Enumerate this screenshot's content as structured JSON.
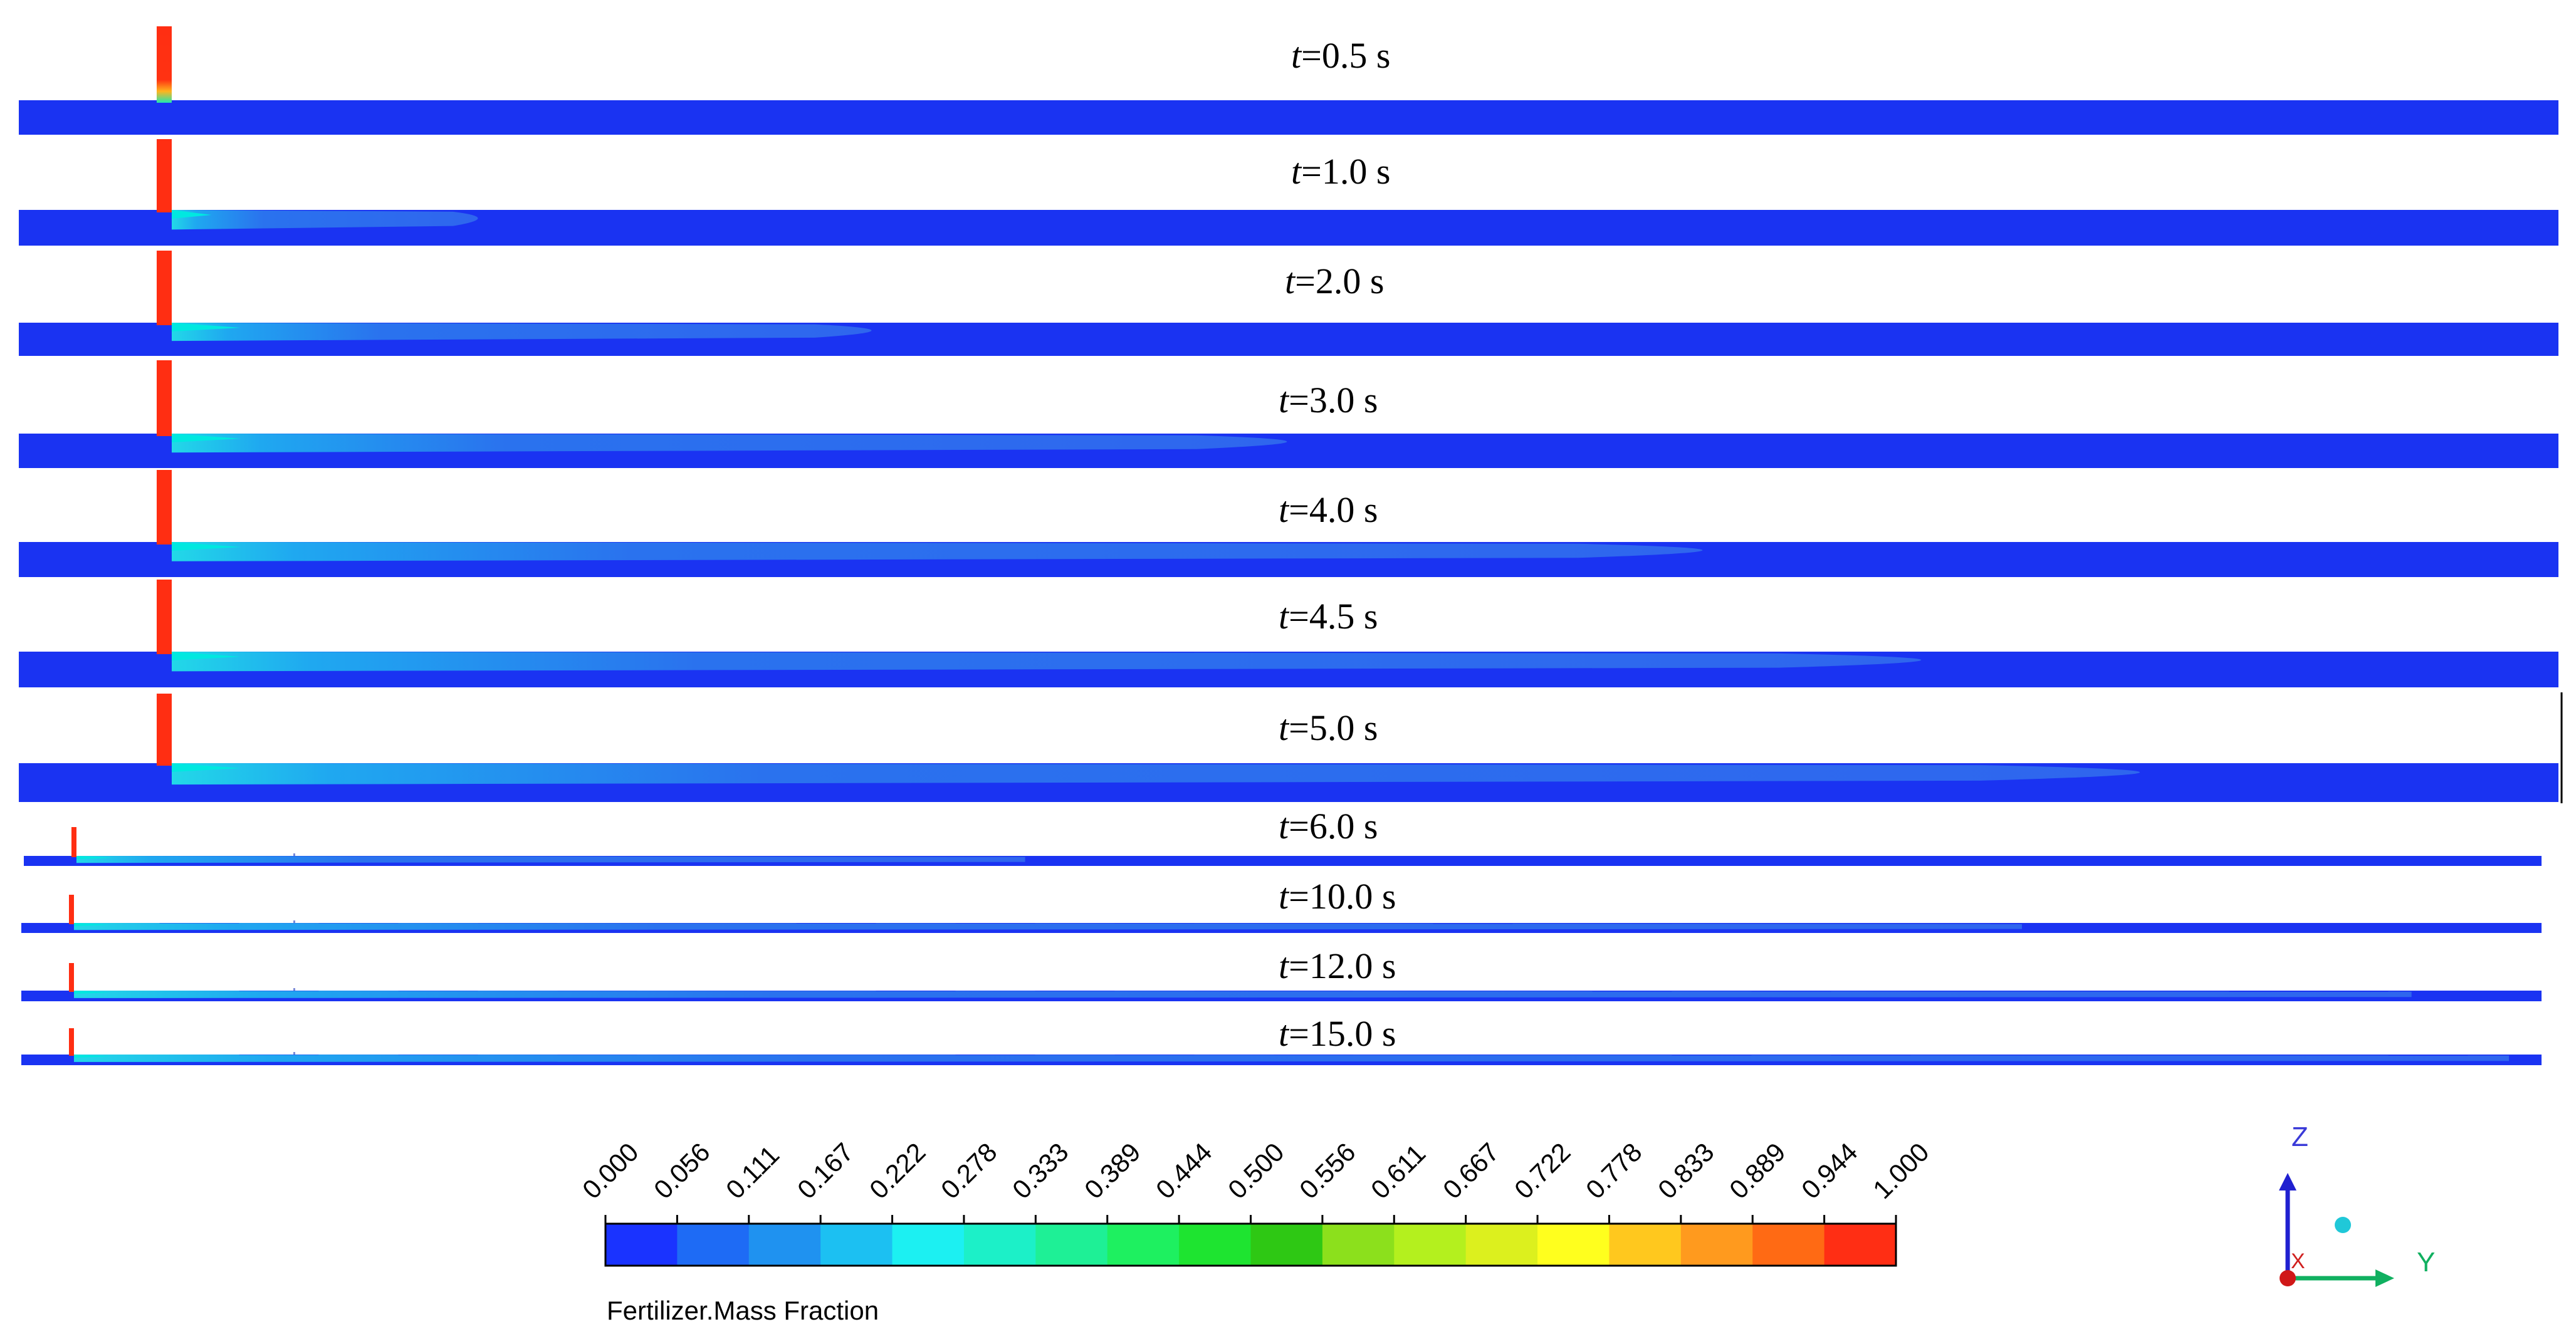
{
  "panels": [
    {
      "time": "t",
      "value": "=0.5 s",
      "plume": 0.0
    },
    {
      "time": "t",
      "value": "=1.0 s",
      "plume": 0.14
    },
    {
      "time": "t",
      "value": "=2.0 s",
      "plume": 0.32
    },
    {
      "time": "t",
      "value": "=3.0 s",
      "plume": 0.51
    },
    {
      "time": "t",
      "value": "=4.0 s",
      "plume": 0.7
    },
    {
      "time": "t",
      "value": "=4.5 s",
      "plume": 0.8
    },
    {
      "time": "t",
      "value": "=5.0 s",
      "plume": 0.9
    },
    {
      "time": "t",
      "value": "=6.0 s",
      "plume": 0.39
    },
    {
      "time": "t",
      "value": "=10.0 s",
      "plume": 0.8
    },
    {
      "time": "t",
      "value": "=12.0 s",
      "plume": 0.96
    },
    {
      "time": "t",
      "value": "=15.0 s",
      "plume": 1.0
    }
  ],
  "legend": {
    "title": "Fertilizer.Mass Fraction",
    "ticks": [
      "0.000",
      "0.056",
      "0.111",
      "0.167",
      "0.222",
      "0.278",
      "0.333",
      "0.389",
      "0.444",
      "0.500",
      "0.556",
      "0.611",
      "0.667",
      "0.722",
      "0.778",
      "0.833",
      "0.889",
      "0.944",
      "1.000"
    ],
    "colors": [
      "#1a33ff",
      "#1e6bf5",
      "#1f92f0",
      "#1cc0f2",
      "#1cf0f2",
      "#1cf0c8",
      "#1ef096",
      "#1ef060",
      "#1ee430",
      "#2ec814",
      "#8ce01c",
      "#b4f01e",
      "#dcf01e",
      "#ffff1e",
      "#ffc81e",
      "#ff9a1e",
      "#ff6a14",
      "#ff2e14"
    ]
  },
  "axes": {
    "z": "Z",
    "y": "Y",
    "x": "X"
  },
  "colors": {
    "channel": "#1a33f2",
    "plume": "#2f6cf0",
    "inlet": "#ff2e12",
    "highlight": "#00e8e0"
  }
}
